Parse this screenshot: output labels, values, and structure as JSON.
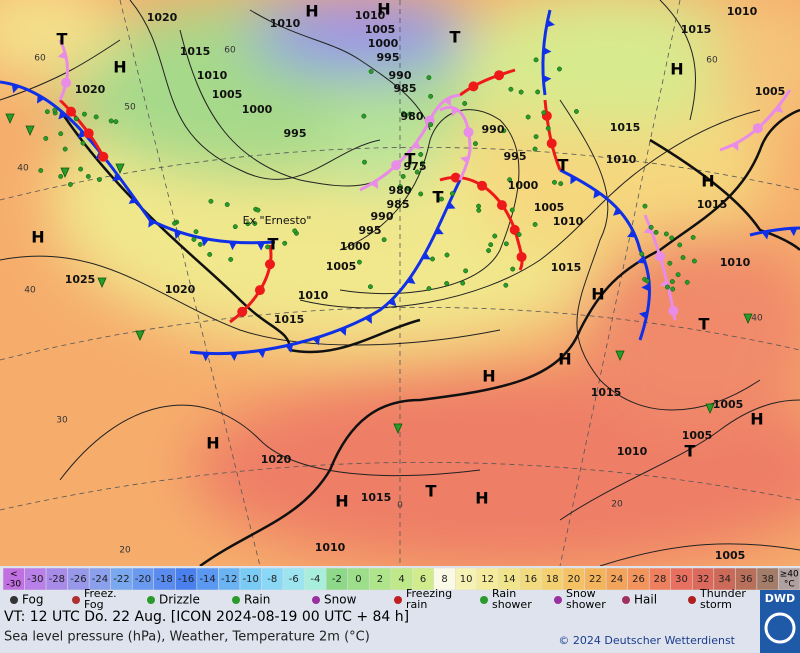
{
  "map": {
    "pressure_labels": [
      1020,
      1010,
      1010,
      1005,
      1000,
      995,
      1015,
      1010,
      1005,
      1000,
      995,
      1020,
      990,
      985,
      980,
      990,
      995,
      975,
      980,
      985,
      990,
      995,
      1000,
      1005,
      1010,
      1015,
      1000,
      1005,
      1010,
      1015,
      1010,
      1015,
      1015,
      1010,
      1010,
      1015,
      1005,
      1025,
      1020,
      1015,
      1005,
      1005,
      1010,
      1020,
      1015,
      1010,
      1005
    ],
    "high_labels": [
      "H",
      "H",
      "H",
      "H",
      "H",
      "H",
      "H",
      "H",
      "H",
      "H",
      "H",
      "H",
      "H"
    ],
    "thunder_labels": [
      "T",
      "T",
      "T",
      "T",
      "T",
      "T",
      "T",
      "T",
      "T"
    ],
    "latitude_labels": [
      60,
      60,
      50,
      40,
      40,
      30,
      20,
      60,
      40,
      0,
      20
    ],
    "storm_label": "Ex \"Ernesto\""
  },
  "scale": {
    "below": [
      "<",
      "-30"
    ],
    "values": [
      -30,
      -28,
      -26,
      -24,
      -22,
      -20,
      -18,
      -16,
      -14,
      -12,
      -10,
      -8,
      -6,
      -4,
      -2,
      0,
      2,
      4,
      6,
      8,
      10,
      12,
      14,
      16,
      18,
      20,
      22,
      24,
      26,
      28,
      30,
      32,
      34,
      36,
      38
    ],
    "above": [
      "≥40",
      "°C"
    ]
  },
  "legend": [
    "Fog",
    "Freez. Fog",
    "Drizzle",
    "Rain",
    "Snow",
    "Freezing rain",
    "Rain shower",
    "Snow shower",
    "Hail",
    "Thunder storm"
  ],
  "footer": {
    "valid": "VT: 12 UTC Do.  22 Aug. [ICON 2024-08-19  00 UTC + 84 h]",
    "subtitle": "Sea level pressure (hPa), Weather, Temperature 2m (°C)",
    "copyright": "© 2024 Deutscher Wetterdienst",
    "logo": "DWD"
  }
}
